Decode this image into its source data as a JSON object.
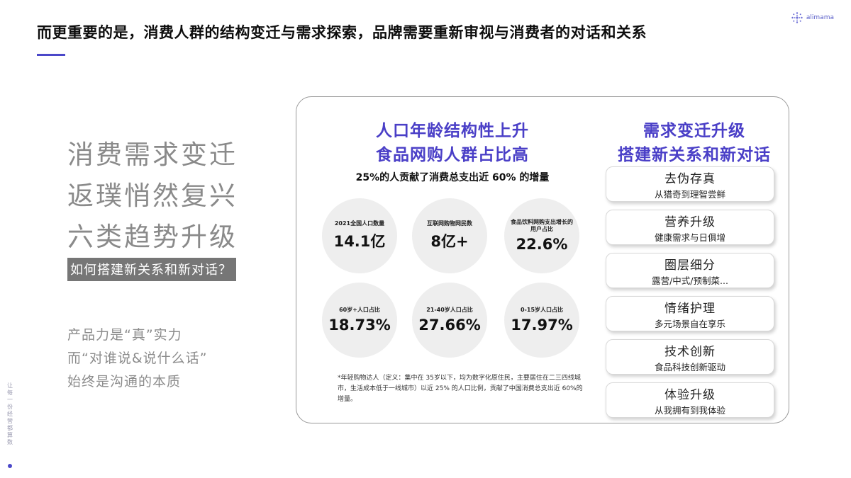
{
  "header": {
    "title": "而更重要的是，消费人群的结构变迁与需求探索，品牌需要重新审视与消费者的对话和关系",
    "logo_text": "alimama",
    "accent_color": "#4b48c9"
  },
  "left": {
    "big_lines": [
      "消费需求变迁",
      "返璞悄然复兴",
      "六类趋势升级"
    ],
    "question": "如何搭建新关系和新对话？",
    "sub_lines": [
      "产品力是“真”实力",
      "而“对谁说&说什么话”",
      "始终是沟通的本质"
    ]
  },
  "side_tag": "让每一份经营都算数",
  "panel": {
    "left_title_1": "人口年龄结构性上升",
    "left_title_2": "食品网购人群占比高",
    "left_subtitle": "25%的人贡献了消费总支出近 60% 的增量",
    "stats": [
      {
        "label": "2021全国人口数量",
        "value": "14.1亿"
      },
      {
        "label": "互联网购物网民数",
        "value": "8亿+"
      },
      {
        "label": "食品饮料网购支出增长的用户占比",
        "value": "22.6%"
      },
      {
        "label": "60岁+人口占比",
        "value": "18.73%"
      },
      {
        "label": "21-40岁人口占比",
        "value": "27.66%"
      },
      {
        "label": "0-15岁人口占比",
        "value": "17.97%"
      }
    ],
    "footnote": "*年轻购物达人（定义：集中在 35岁以下，均为数字化原住民，主要居住在二三四线城市，生活成本低于一线城市）以近 25% 的人口比例，贡献了中国消费总支出近 60%的增量。",
    "right_title_1": "需求变迁升级",
    "right_title_2": "搭建新关系和新对话",
    "trends": [
      {
        "title": "去伪存真",
        "sub": "从猎奇到理智尝鲜"
      },
      {
        "title": "营养升级",
        "sub": "健康需求与日俱增"
      },
      {
        "title": "圈层细分",
        "sub": "露营/中式/预制菜..."
      },
      {
        "title": "情绪护理",
        "sub": "多元场景自在享乐"
      },
      {
        "title": "技术创新",
        "sub": "食品科技创新驱动"
      },
      {
        "title": "体验升级",
        "sub": "从我拥有到我体验"
      }
    ]
  }
}
